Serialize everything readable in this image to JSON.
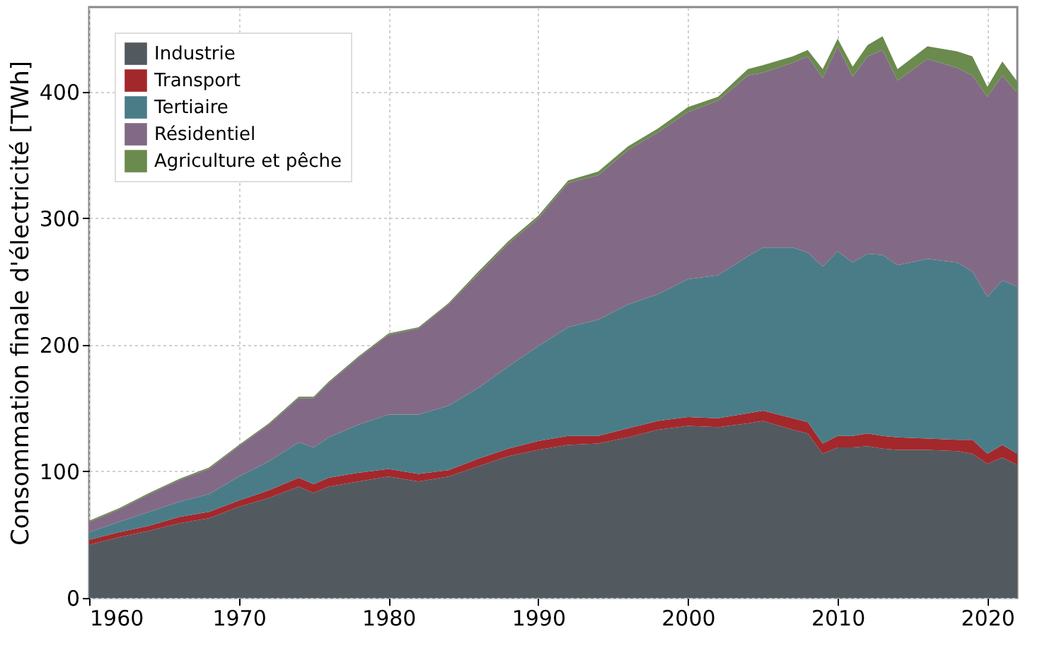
{
  "chart_data": {
    "type": "area",
    "stacked": true,
    "ylabel": "Consommation finale d'électricité [TWh]",
    "x": [
      1960,
      1962,
      1964,
      1966,
      1968,
      1970,
      1972,
      1974,
      1975,
      1976,
      1978,
      1980,
      1982,
      1984,
      1986,
      1988,
      1990,
      1992,
      1994,
      1996,
      1998,
      2000,
      2002,
      2004,
      2005,
      2007,
      2008,
      2009,
      2010,
      2011,
      2012,
      2013,
      2014,
      2016,
      2018,
      2019,
      2020,
      2021,
      2022
    ],
    "series": [
      {
        "name": "Industrie",
        "color": "#525a60",
        "values": [
          42,
          48,
          53,
          59,
          63,
          72,
          79,
          88,
          83,
          88,
          92,
          96,
          92,
          96,
          104,
          112,
          117,
          121,
          122,
          127,
          133,
          136,
          135,
          138,
          140,
          133,
          130,
          114,
          119,
          119,
          120,
          118,
          117,
          117,
          116,
          114,
          106,
          111,
          105
        ]
      },
      {
        "name": "Transport",
        "color": "#a3282c",
        "values": [
          4,
          4,
          4,
          5,
          5,
          5,
          6,
          7,
          7,
          7,
          7,
          6,
          6,
          5,
          6,
          6,
          7,
          7,
          6,
          7,
          7,
          7,
          7,
          8,
          8,
          9,
          9,
          8,
          9,
          9,
          10,
          10,
          10,
          9,
          9,
          11,
          8,
          10,
          9
        ]
      },
      {
        "name": "Tertiaire",
        "color": "#4a7c88",
        "values": [
          6,
          8,
          11,
          12,
          14,
          19,
          23,
          28,
          29,
          32,
          38,
          43,
          47,
          51,
          56,
          65,
          75,
          86,
          92,
          98,
          100,
          109,
          113,
          124,
          129,
          135,
          134,
          140,
          146,
          137,
          142,
          143,
          136,
          142,
          140,
          133,
          124,
          130,
          132
        ]
      },
      {
        "name": "Résidentiel",
        "color": "#826a86",
        "values": [
          8,
          10,
          14,
          17,
          20,
          24,
          29,
          35,
          39,
          43,
          53,
          63,
          68,
          80,
          90,
          97,
          101,
          114,
          114,
          122,
          128,
          132,
          138,
          143,
          138,
          146,
          155,
          149,
          162,
          147,
          156,
          162,
          146,
          158,
          154,
          155,
          158,
          162,
          153
        ]
      },
      {
        "name": "Agriculture et pêche",
        "color": "#6b8a4e",
        "values": [
          1,
          1,
          1,
          1,
          1,
          1,
          1,
          1,
          1,
          1,
          1,
          1,
          1,
          1,
          2,
          2,
          2,
          2,
          3,
          3,
          3,
          4,
          3,
          5,
          6,
          5,
          5,
          7,
          6,
          8,
          9,
          11,
          9,
          10,
          13,
          15,
          8,
          11,
          9
        ]
      }
    ],
    "xlim": [
      1960,
      2022
    ],
    "xticks": [
      1960,
      1970,
      1980,
      1990,
      2000,
      2010,
      2020
    ],
    "ylim": [
      0,
      467
    ],
    "yticks": [
      0,
      100,
      200,
      300,
      400
    ],
    "grid": true,
    "legend": "top left"
  }
}
